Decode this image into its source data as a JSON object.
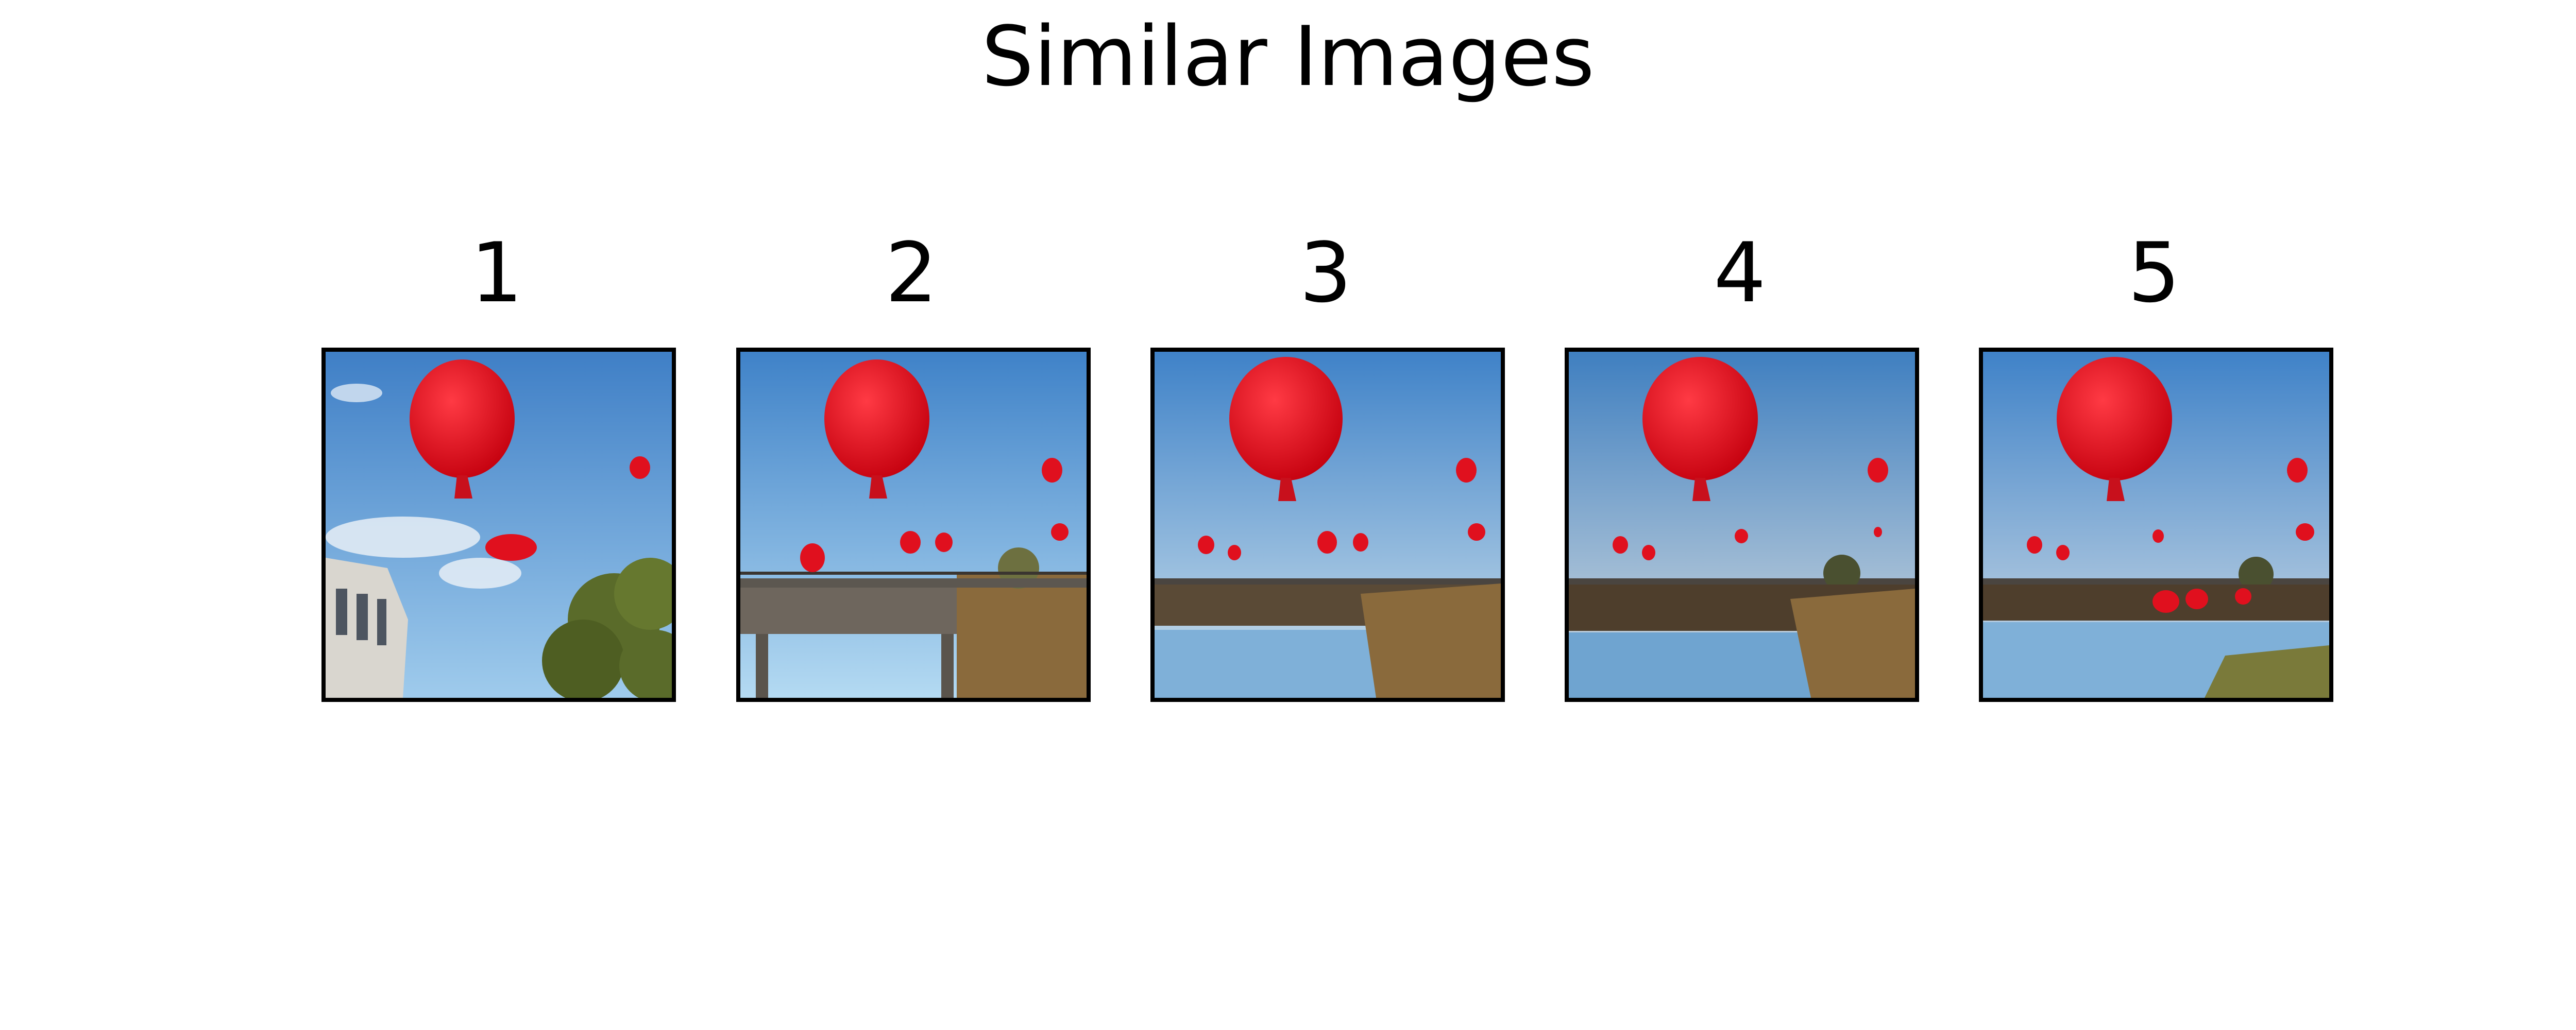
{
  "title": "Similar Images",
  "panels": [
    {
      "label": "1",
      "scene": "balloons-over-building-and-tree"
    },
    {
      "label": "2",
      "scene": "balloons-over-bridge"
    },
    {
      "label": "3",
      "scene": "balloons-over-pond-and-reeds"
    },
    {
      "label": "4",
      "scene": "balloons-over-pond-and-reeds"
    },
    {
      "label": "5",
      "scene": "balloons-over-pond-and-reeds"
    }
  ],
  "colors": {
    "sky_top": "#3f82c8",
    "sky_bottom": "#a9d2ee",
    "balloon": "#e0101e",
    "frame": "#000000",
    "reeds": "#8a6a3c",
    "water": "#7fb0d8",
    "tree": "#5a6b2a"
  }
}
